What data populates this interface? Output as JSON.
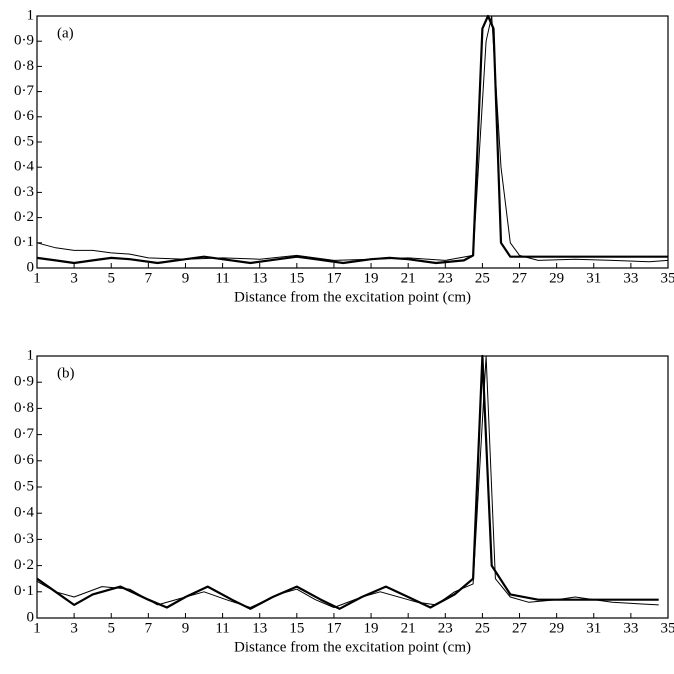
{
  "chart_data": [
    {
      "type": "line",
      "annotation": "(a)",
      "x_label": "Distance from the excitation point (cm)",
      "xlim": [
        1,
        35
      ],
      "ylim": [
        0,
        1
      ],
      "xticks": [
        1,
        3,
        5,
        7,
        9,
        11,
        13,
        15,
        17,
        19,
        21,
        23,
        25,
        27,
        29,
        31,
        33,
        35
      ],
      "yticks": [
        0,
        {
          "value": 0.1,
          "label": "0·1"
        },
        {
          "value": 0.2,
          "label": "0·2"
        },
        {
          "value": 0.3,
          "label": "0·3"
        },
        {
          "value": 0.4,
          "label": "0·4"
        },
        {
          "value": 0.5,
          "label": "0·5"
        },
        {
          "value": 0.6,
          "label": "0·6"
        },
        {
          "value": 0.7,
          "label": "0·7"
        },
        {
          "value": 0.8,
          "label": "0·8"
        },
        {
          "value": 0.9,
          "label": "0·9"
        },
        1
      ],
      "series": [
        {
          "color": "#000000",
          "width": 2.2,
          "x": [
            1,
            2,
            3,
            4,
            5,
            6,
            7.5,
            9,
            10,
            11,
            12.5,
            14,
            15,
            16,
            17.5,
            19,
            20,
            21,
            22.5,
            24,
            24.5,
            25,
            25.3,
            25.6,
            26,
            26.5,
            35
          ],
          "values": [
            0.04,
            0.03,
            0.02,
            0.03,
            0.04,
            0.035,
            0.02,
            0.035,
            0.045,
            0.035,
            0.02,
            0.035,
            0.045,
            0.035,
            0.02,
            0.035,
            0.04,
            0.035,
            0.02,
            0.03,
            0.05,
            0.95,
            1.0,
            0.95,
            0.1,
            0.045,
            0.045
          ]
        },
        {
          "color": "#000000",
          "width": 1,
          "x": [
            1,
            2,
            3,
            4,
            5,
            6,
            7,
            9,
            11,
            13,
            15,
            17,
            19,
            21,
            23,
            24.5,
            25.2,
            25.5,
            26,
            26.5,
            27,
            28,
            30,
            32,
            34,
            35
          ],
          "values": [
            0.1,
            0.08,
            0.07,
            0.07,
            0.06,
            0.055,
            0.04,
            0.035,
            0.04,
            0.035,
            0.05,
            0.03,
            0.035,
            0.04,
            0.03,
            0.05,
            0.9,
            1.0,
            0.4,
            0.1,
            0.05,
            0.03,
            0.035,
            0.03,
            0.025,
            0.03
          ]
        }
      ]
    },
    {
      "type": "line",
      "annotation": "(b)",
      "x_label": "Distance from the excitation point (cm)",
      "xlim": [
        1,
        35
      ],
      "ylim": [
        0,
        1
      ],
      "xticks": [
        1,
        3,
        5,
        7,
        9,
        11,
        13,
        15,
        17,
        19,
        21,
        23,
        25,
        27,
        29,
        31,
        33,
        35
      ],
      "yticks": [
        0,
        {
          "value": 0.1,
          "label": "0·1"
        },
        {
          "value": 0.2,
          "label": "0·2"
        },
        {
          "value": 0.3,
          "label": "0·3"
        },
        {
          "value": 0.4,
          "label": "0·4"
        },
        {
          "value": 0.5,
          "label": "0·5"
        },
        {
          "value": 0.6,
          "label": "0·6"
        },
        {
          "value": 0.7,
          "label": "0·7"
        },
        {
          "value": 0.8,
          "label": "0·8"
        },
        {
          "value": 0.9,
          "label": "0·9"
        },
        1
      ],
      "series": [
        {
          "color": "#000000",
          "width": 2.2,
          "x": [
            1,
            2,
            3,
            4,
            5.5,
            7,
            8,
            9,
            10.2,
            11.5,
            12.5,
            13.7,
            15,
            16.3,
            17.3,
            18.5,
            19.8,
            21,
            22.2,
            23.5,
            24.5,
            25,
            25.5,
            26.5,
            28,
            34.5
          ],
          "values": [
            0.15,
            0.1,
            0.05,
            0.09,
            0.12,
            0.07,
            0.04,
            0.08,
            0.12,
            0.07,
            0.035,
            0.08,
            0.12,
            0.07,
            0.035,
            0.08,
            0.12,
            0.08,
            0.04,
            0.09,
            0.15,
            1.0,
            0.2,
            0.09,
            0.07,
            0.07
          ]
        },
        {
          "color": "#000000",
          "width": 1,
          "x": [
            1,
            2,
            3,
            4.5,
            6,
            7.5,
            9,
            10,
            11.2,
            12.5,
            14,
            15,
            16,
            17,
            18.5,
            19.5,
            21.5,
            22.5,
            23.5,
            24.5,
            25.2,
            25.7,
            26.5,
            27.5,
            29,
            30,
            32,
            34.5
          ],
          "values": [
            0.14,
            0.1,
            0.08,
            0.12,
            0.11,
            0.05,
            0.08,
            0.1,
            0.07,
            0.04,
            0.09,
            0.11,
            0.07,
            0.04,
            0.08,
            0.1,
            0.06,
            0.05,
            0.1,
            0.13,
            1.0,
            0.15,
            0.08,
            0.06,
            0.07,
            0.08,
            0.06,
            0.05
          ]
        }
      ]
    }
  ]
}
